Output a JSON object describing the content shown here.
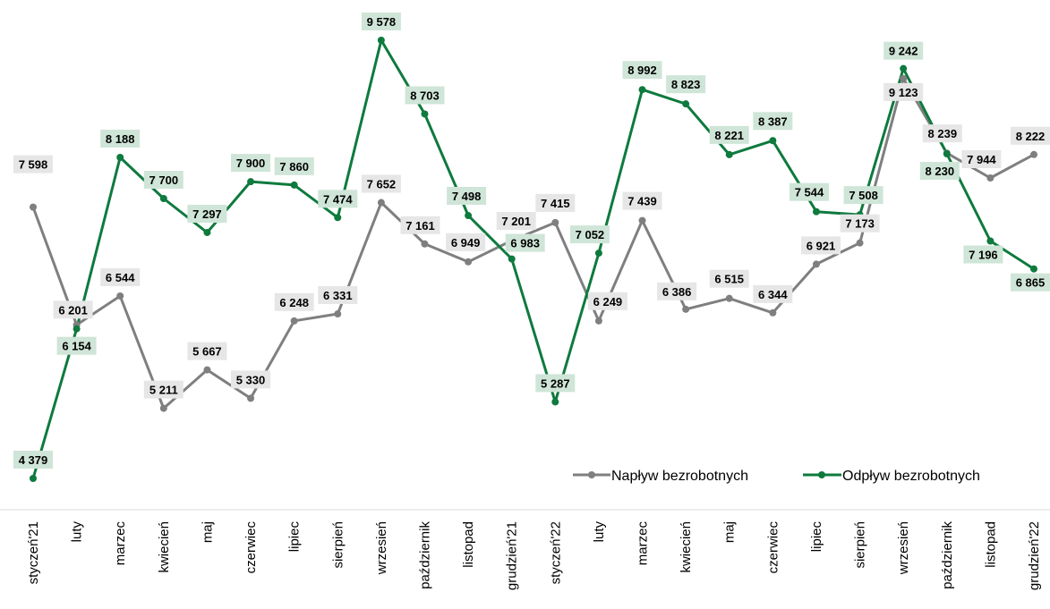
{
  "chart_data": {
    "type": "line",
    "categories": [
      "styczeń'21",
      "luty",
      "marzec",
      "kwiecień",
      "maj",
      "czerwiec",
      "lipiec",
      "sierpień",
      "wrzesień",
      "październik",
      "listopad",
      "grudzień'21",
      "styczeń'22",
      "luty",
      "marzec",
      "kwiecień",
      "maj",
      "czerwiec",
      "lipiec",
      "sierpień",
      "wrzesień",
      "październik",
      "listopad",
      "grudzień'22"
    ],
    "series": [
      {
        "name": "Napływ bezrobotnych",
        "color": "#7f7f7f",
        "label_bg": "#e6e6e6",
        "values": [
          7598,
          6201,
          6544,
          5211,
          5667,
          5330,
          6248,
          6331,
          7652,
          7161,
          6949,
          7201,
          7415,
          6249,
          7439,
          6386,
          6515,
          6344,
          6921,
          7173,
          9123,
          8239,
          7944,
          8222
        ],
        "labels": [
          "7 598",
          "6 201",
          "6 544",
          "5 211",
          "5 667",
          "5 330",
          "6 248",
          "6 331",
          "7 652",
          "7 161",
          "6 949",
          "7 201",
          "7 415",
          "6 249",
          "7 439",
          "6 386",
          "6 515",
          "6 344",
          "6 921",
          "7 173",
          "9 123",
          "8 239",
          "7 944",
          "8 222"
        ]
      },
      {
        "name": "Odpływ bezrobotnych",
        "color": "#0e7a3e",
        "label_bg": "#cfe5d8",
        "values": [
          4379,
          6154,
          8188,
          7700,
          7297,
          7900,
          7860,
          7474,
          9578,
          8703,
          7498,
          6983,
          5287,
          7052,
          8992,
          8823,
          8221,
          8387,
          7544,
          7508,
          9242,
          8230,
          7196,
          6865
        ],
        "labels": [
          "4 379",
          "6 154",
          "8 188",
          "7 700",
          "7 297",
          "7 900",
          "7 860",
          "7 474",
          "9 578",
          "8 703",
          "7 498",
          "6 983",
          "5 287",
          "7 052",
          "8 992",
          "8 823",
          "8 221",
          "8 387",
          "7 544",
          "7 508",
          "9 242",
          "8 230",
          "7 196",
          "6 865"
        ]
      }
    ],
    "legend_position": "bottom-right",
    "grid": false
  }
}
